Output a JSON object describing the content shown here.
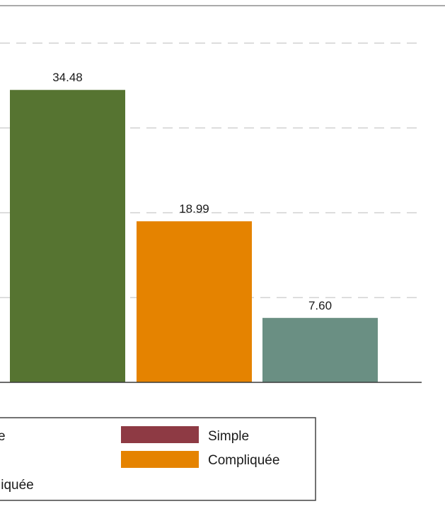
{
  "chart_data": {
    "type": "bar",
    "series": [
      {
        "name": "",
        "values": [
          34.48
        ],
        "value_label": "34.48",
        "color": "#567431"
      },
      {
        "name": "",
        "values": [
          18.99
        ],
        "value_label": "18.99",
        "color": "#e58300"
      },
      {
        "name": "",
        "values": [
          7.6
        ],
        "value_label": "7.60",
        "color": "#6a8f83"
      }
    ],
    "ylim": [
      0,
      40
    ],
    "gridlines": [
      10,
      20,
      30,
      40
    ],
    "grid": true,
    "legend": {
      "placement": "bottom",
      "entries": [
        {
          "label": "e",
          "color": ""
        },
        {
          "label": "Simple",
          "color": "#8e3a44"
        },
        {
          "label": "Compliquée",
          "color": "#e58300"
        },
        {
          "label": "liquée",
          "color": ""
        }
      ]
    },
    "colors": {
      "grid": "#d2d2d2",
      "axis": "#3a3a3a",
      "frame": "#555555"
    }
  }
}
